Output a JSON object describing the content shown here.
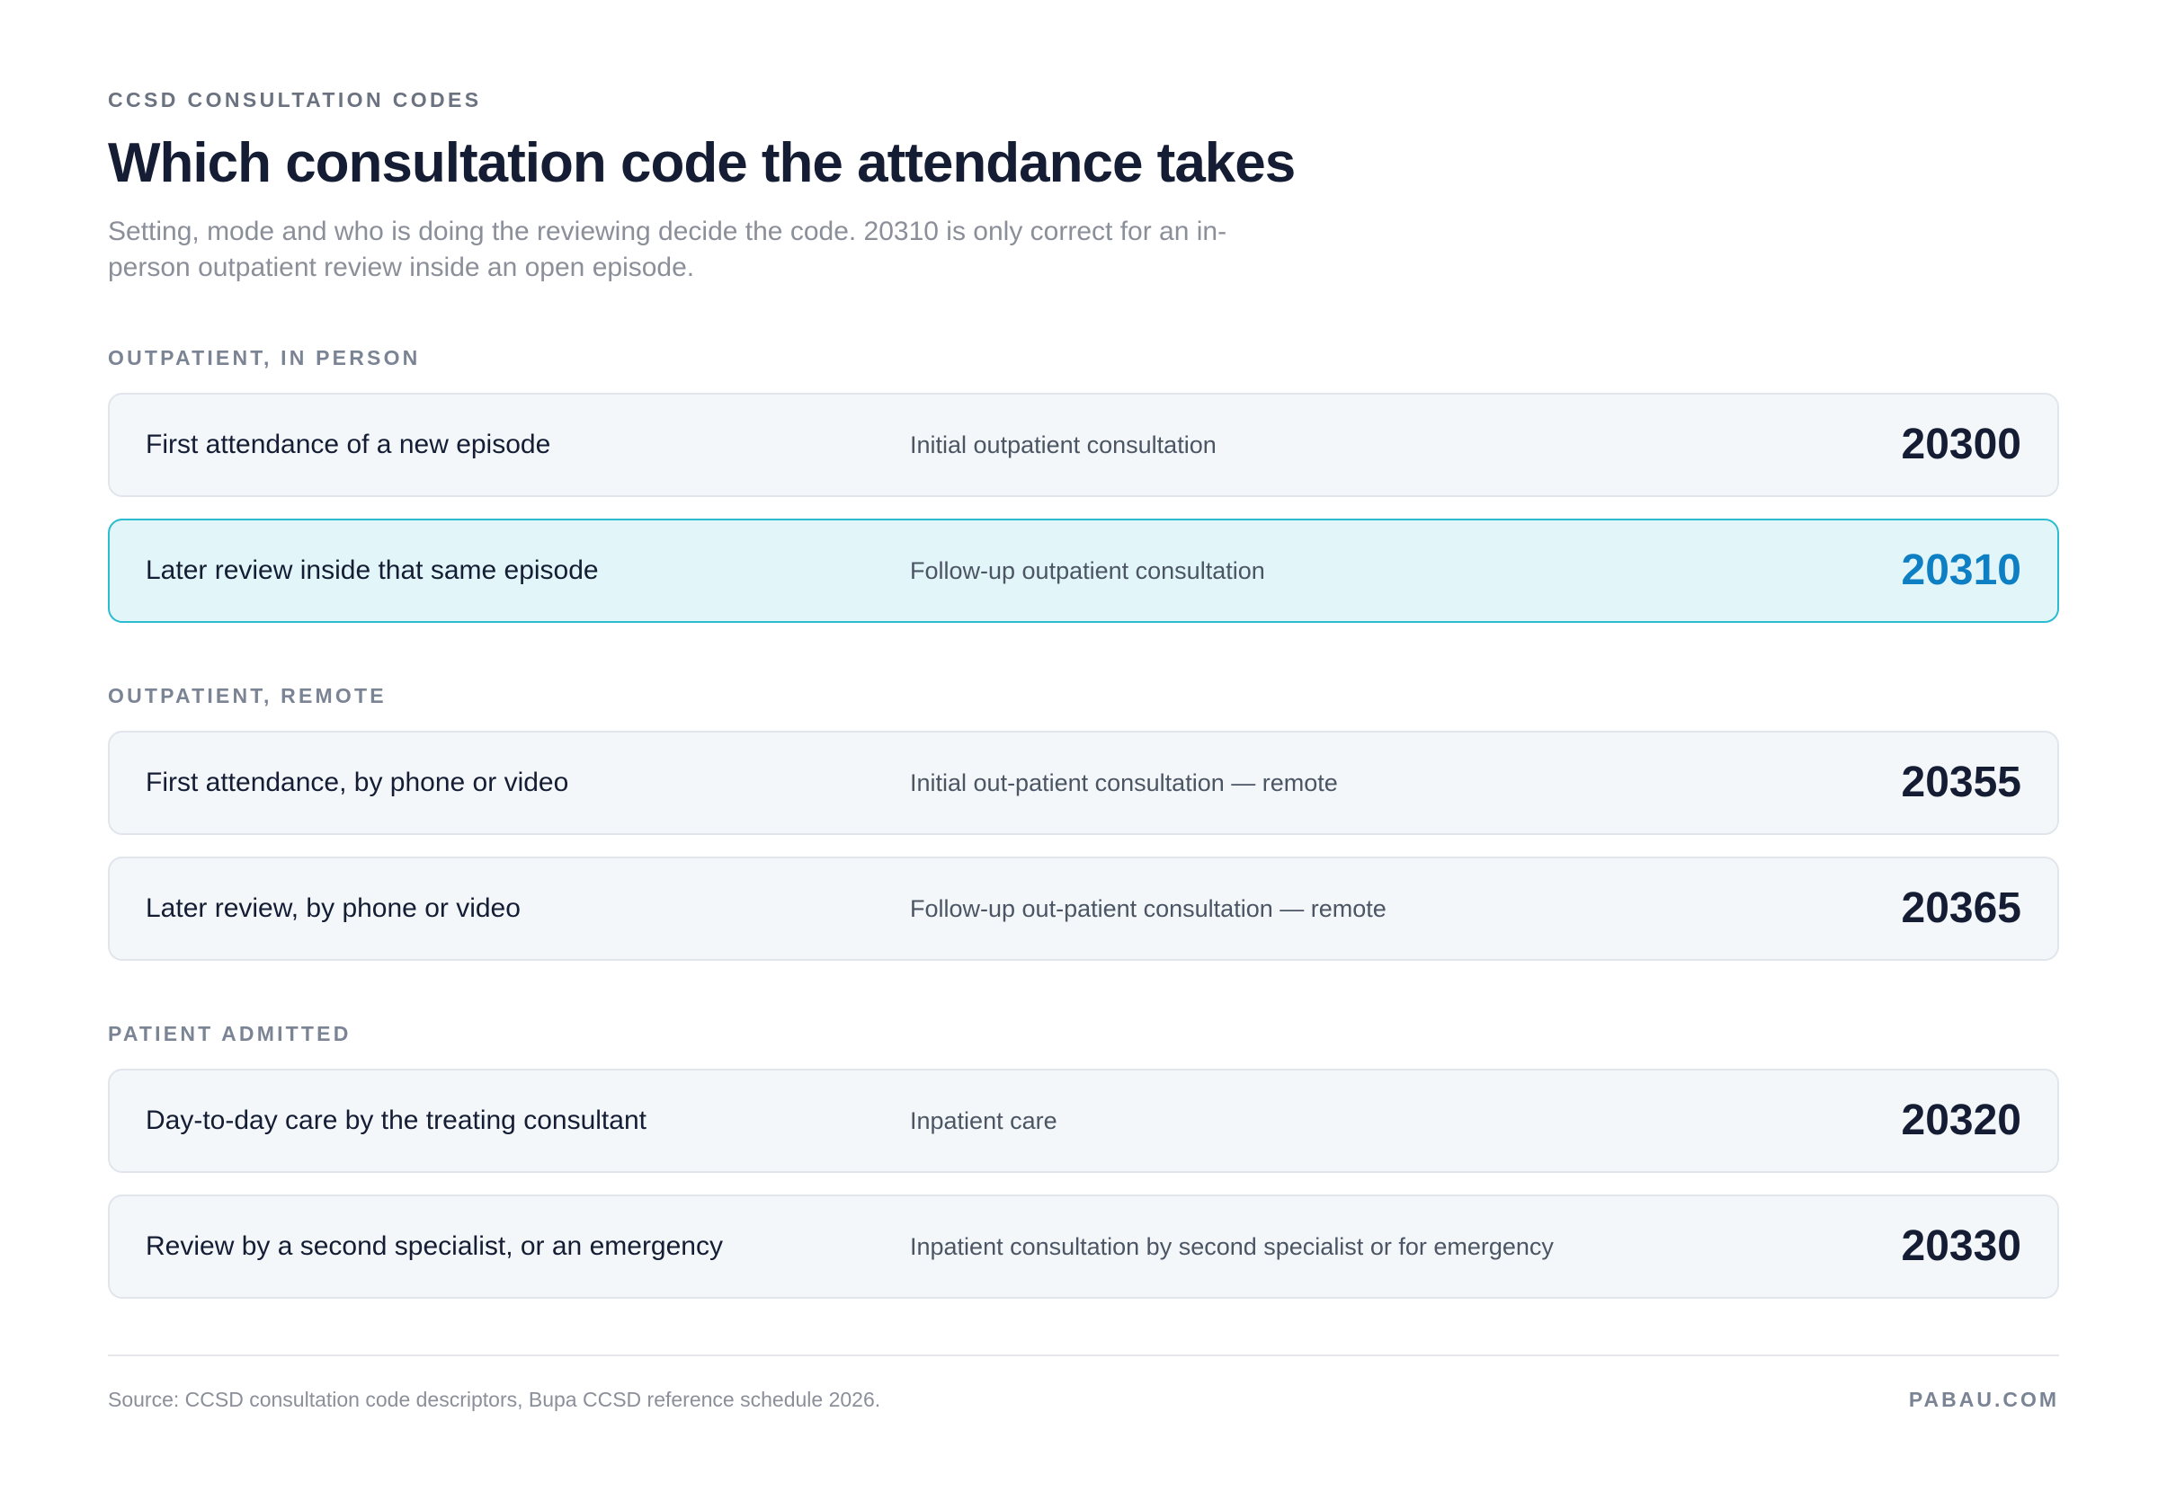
{
  "header": {
    "eyebrow": "CCSD CONSULTATION CODES",
    "title": "Which consultation code the attendance takes",
    "subtitle": "Setting, mode and who is doing the reviewing decide the code. 20310 is only correct for an in-person outpatient review inside an open episode."
  },
  "sections": [
    {
      "label": "OUTPATIENT, IN PERSON",
      "rows": [
        {
          "label": "First attendance of a new episode",
          "description": "Initial outpatient consultation",
          "code": "20300",
          "highlighted": false
        },
        {
          "label": "Later review inside that same episode",
          "description": "Follow-up outpatient consultation",
          "code": "20310",
          "highlighted": true
        }
      ]
    },
    {
      "label": "OUTPATIENT, REMOTE",
      "rows": [
        {
          "label": "First attendance, by phone or video",
          "description": "Initial out-patient consultation — remote",
          "code": "20355",
          "highlighted": false
        },
        {
          "label": "Later review, by phone or video",
          "description": "Follow-up out-patient consultation — remote",
          "code": "20365",
          "highlighted": false
        }
      ]
    },
    {
      "label": "PATIENT ADMITTED",
      "rows": [
        {
          "label": "Day-to-day care by the treating consultant",
          "description": "Inpatient care",
          "code": "20320",
          "highlighted": false
        },
        {
          "label": "Review by a second specialist, or an emergency",
          "description": "Inpatient consultation by second specialist or for emergency",
          "code": "20330",
          "highlighted": false
        }
      ]
    }
  ],
  "footer": {
    "source": "Source: CCSD consultation code descriptors, Bupa CCSD reference schedule 2026.",
    "brand": "PABAU.COM"
  },
  "colors": {
    "highlight_background": "#e2f6fa",
    "highlight_border": "#2cbccf",
    "highlight_code": "#0f7fc4"
  }
}
